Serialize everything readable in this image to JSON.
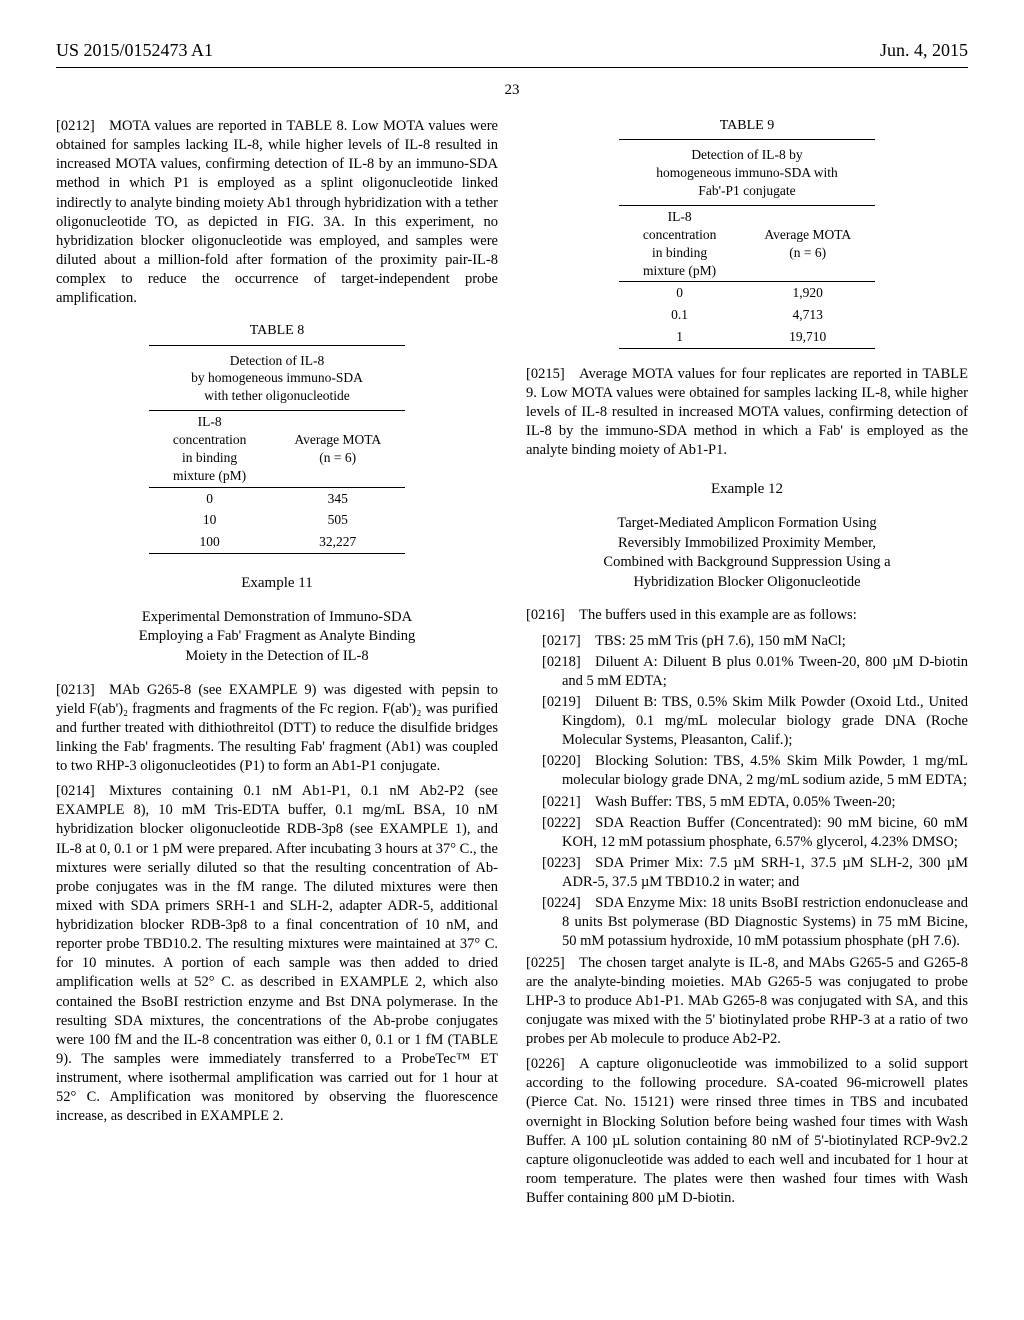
{
  "header": {
    "left": "US 2015/0152473 A1",
    "right": "Jun. 4, 2015"
  },
  "page_number": "23",
  "left_col": {
    "para_0212": "[0212] MOTA values are reported in TABLE 8. Low MOTA values were obtained for samples lacking IL-8, while higher levels of IL-8 resulted in increased MOTA values, confirming detection of IL-8 by an immuno-SDA method in which P1 is employed as a splint oligonucleotide linked indirectly to analyte binding moiety Ab1 through hybridization with a tether oligonucleotide TO, as depicted in FIG. 3A. In this experiment, no hybridization blocker oligonucleotide was employed, and samples were diluted about a million-fold after formation of the proximity pair-IL-8 complex to reduce the occurrence of target-independent probe amplification.",
    "table8": {
      "label": "TABLE 8",
      "title_lines": [
        "Detection of IL-8",
        "by homogeneous immuno-SDA",
        "with tether oligonucleotide"
      ],
      "col1_header_lines": [
        "IL-8",
        "concentration",
        "in binding",
        "mixture (pM)"
      ],
      "col2_header_lines": [
        "Average MOTA",
        "(n = 6)"
      ],
      "rows": [
        {
          "c1": "0",
          "c2": "345"
        },
        {
          "c1": "10",
          "c2": "505"
        },
        {
          "c1": "100",
          "c2": "32,227"
        }
      ]
    },
    "example11_heading": "Example 11",
    "example11_subheading_lines": [
      "Experimental Demonstration of Immuno-SDA",
      "Employing a Fab' Fragment as Analyte Binding",
      "Moiety in the Detection of IL-8"
    ],
    "para_0213": "[0213] MAb G265-8 (see EXAMPLE 9) was digested with pepsin to yield F(ab')₂ fragments and fragments of the Fc region. F(ab')₂ was purified and further treated with dithiothreitol (DTT) to reduce the disulfide bridges linking the Fab' fragments. The resulting Fab' fragment (Ab1) was coupled to two RHP-3 oligonucleotides (P1) to form an Ab1-P1 conjugate.",
    "para_0214": "[0214] Mixtures containing 0.1 nM Ab1-P1, 0.1 nM Ab2-P2 (see EXAMPLE 8), 10 mM Tris-EDTA buffer, 0.1 mg/mL BSA, 10 nM hybridization blocker oligonucleotide RDB-3p8 (see EXAMPLE 1), and IL-8 at 0, 0.1 or 1 pM were prepared. After incubating 3 hours at 37° C., the mixtures were serially diluted so that the resulting concentration of Ab-probe conjugates was in the fM range. The diluted mixtures were then mixed with SDA primers SRH-1 and SLH-2, adapter ADR-5, additional hybridization blocker RDB-3p8 to a final concentration of 10 nM, and reporter probe TBD10.2. The resulting mixtures were maintained at 37° C. for 10 minutes. A portion of each sample was then added to dried amplification wells at 52° C. as described in EXAMPLE 2, which also contained the BsoBI restriction enzyme and Bst DNA polymerase. In the resulting SDA mixtures, the concentrations of the Ab-probe conjugates were 100 fM and the IL-8 concentration was either 0, 0.1 or 1 fM (TABLE 9). The samples were immediately transferred to a ProbeTec™ ET instrument, where isothermal amplification was carried out for 1 hour at 52° C. Amplification was monitored by observing the fluorescence increase, as described in EXAMPLE 2."
  },
  "right_col": {
    "table9": {
      "label": "TABLE 9",
      "title_lines": [
        "Detection of IL-8 by",
        "homogeneous immuno-SDA with",
        "Fab'-P1 conjugate"
      ],
      "col1_header_lines": [
        "IL-8",
        "concentration",
        "in binding",
        "mixture (pM)"
      ],
      "col2_header_lines": [
        "Average MOTA",
        "(n = 6)"
      ],
      "rows": [
        {
          "c1": "0",
          "c2": "1,920"
        },
        {
          "c1": "0.1",
          "c2": "4,713"
        },
        {
          "c1": "1",
          "c2": "19,710"
        }
      ]
    },
    "para_0215": "[0215] Average MOTA values for four replicates are reported in TABLE 9. Low MOTA values were obtained for samples lacking IL-8, while higher levels of IL-8 resulted in increased MOTA values, confirming detection of IL-8 by the immuno-SDA method in which a Fab' is employed as the analyte binding moiety of Ab1-P1.",
    "example12_heading": "Example 12",
    "example12_subheading_lines": [
      "Target-Mediated Amplicon Formation Using",
      "Reversibly Immobilized Proximity Member,",
      "Combined with Background Suppression Using a",
      "Hybridization Blocker Oligonucleotide"
    ],
    "para_0216": "[0216] The buffers used in this example are as follows:",
    "list_items": [
      "[0217] TBS: 25 mM Tris (pH 7.6), 150 mM NaCl;",
      "[0218] Diluent A: Diluent B plus 0.01% Tween-20, 800 µM D-biotin and 5 mM EDTA;",
      "[0219] Diluent B: TBS, 0.5% Skim Milk Powder (Oxoid Ltd., United Kingdom), 0.1 mg/mL molecular biology grade DNA (Roche Molecular Systems, Pleasanton, Calif.);",
      "[0220] Blocking Solution: TBS, 4.5% Skim Milk Powder, 1 mg/mL molecular biology grade DNA, 2 mg/mL sodium azide, 5 mM EDTA;",
      "[0221] Wash Buffer: TBS, 5 mM EDTA, 0.05% Tween-20;",
      "[0222] SDA Reaction Buffer (Concentrated): 90 mM bicine, 60 mM KOH, 12 mM potassium phosphate, 6.57% glycerol, 4.23% DMSO;",
      "[0223] SDA Primer Mix: 7.5 µM SRH-1, 37.5 µM SLH-2, 300 µM ADR-5, 37.5 µM TBD10.2 in water; and",
      "[0224] SDA Enzyme Mix: 18 units BsoBI restriction endonuclease and 8 units Bst polymerase (BD Diagnostic Systems) in 75 mM Bicine, 50 mM potassium hydroxide, 10 mM potassium phosphate (pH 7.6)."
    ],
    "para_0225": "[0225] The chosen target analyte is IL-8, and MAbs G265-5 and G265-8 are the analyte-binding moieties. MAb G265-5 was conjugated to probe LHP-3 to produce Ab1-P1. MAb G265-8 was conjugated with SA, and this conjugate was mixed with the 5' biotinylated probe RHP-3 at a ratio of two probes per Ab molecule to produce Ab2-P2.",
    "para_0226": "[0226] A capture oligonucleotide was immobilized to a solid support according to the following procedure. SA-coated 96-microwell plates (Pierce Cat. No. 15121) were rinsed three times in TBS and incubated overnight in Blocking Solution before being washed four times with Wash Buffer. A 100 µL solution containing 80 nM of 5'-biotinylated RCP-9v2.2 capture oligonucleotide was added to each well and incubated for 1 hour at room temperature. The plates were then washed four times with Wash Buffer containing 800 µM D-biotin."
  }
}
